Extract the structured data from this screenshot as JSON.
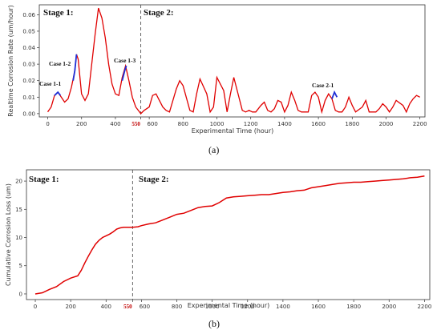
{
  "chart_data": [
    {
      "type": "line",
      "panel_label": "(a)",
      "xlabel": "Experimental Time (hour)",
      "ylabel": "Realtime Corrosion Rate (um/hour)",
      "xlim": [
        -50,
        2230
      ],
      "ylim": [
        -0.002,
        0.066
      ],
      "xticks": [
        0,
        200,
        400,
        550,
        600,
        800,
        1000,
        1200,
        1400,
        1600,
        1800,
        2000,
        2200
      ],
      "xtick_labels": [
        "0",
        "200",
        "400",
        "550",
        "600",
        "800",
        "1000",
        "1200",
        "1400",
        "1600",
        "1800",
        "2000",
        "2200"
      ],
      "yticks": [
        0.0,
        0.01,
        0.02,
        0.03,
        0.04,
        0.05,
        0.06
      ],
      "ytick_labels": [
        "0.00",
        "0.01",
        "0.02",
        "0.03",
        "0.04",
        "0.05",
        "0.06"
      ],
      "stage_divider_x": 550,
      "stage_labels": [
        "Stage 1:",
        "Stage 2:"
      ],
      "series": [
        {
          "color": "#e00000",
          "x": [
            0,
            20,
            40,
            60,
            80,
            100,
            120,
            140,
            160,
            170,
            180,
            200,
            220,
            240,
            260,
            280,
            300,
            320,
            340,
            360,
            380,
            400,
            420,
            440,
            460,
            480,
            500,
            520,
            550,
            570,
            600,
            620,
            640,
            660,
            680,
            700,
            720,
            760,
            780,
            800,
            840,
            860,
            880,
            900,
            940,
            960,
            980,
            1000,
            1040,
            1060,
            1080,
            1100,
            1150,
            1170,
            1190,
            1210,
            1230,
            1260,
            1280,
            1300,
            1320,
            1340,
            1360,
            1380,
            1400,
            1420,
            1440,
            1460,
            1480,
            1500,
            1540,
            1560,
            1580,
            1600,
            1620,
            1640,
            1660,
            1680,
            1700,
            1720,
            1740,
            1760,
            1780,
            1800,
            1820,
            1860,
            1880,
            1900,
            1940,
            1960,
            1980,
            2000,
            2020,
            2040,
            2060,
            2100,
            2120,
            2140,
            2160,
            2180,
            2200
          ],
          "y": [
            0.001,
            0.004,
            0.011,
            0.013,
            0.01,
            0.007,
            0.009,
            0.016,
            0.026,
            0.036,
            0.033,
            0.012,
            0.008,
            0.012,
            0.03,
            0.048,
            0.064,
            0.058,
            0.046,
            0.03,
            0.018,
            0.012,
            0.011,
            0.022,
            0.029,
            0.02,
            0.01,
            0.004,
            0.0,
            0.002,
            0.004,
            0.011,
            0.012,
            0.008,
            0.004,
            0.002,
            0.001,
            0.015,
            0.02,
            0.017,
            0.002,
            0.001,
            0.012,
            0.021,
            0.012,
            0.001,
            0.004,
            0.022,
            0.014,
            0.001,
            0.012,
            0.022,
            0.002,
            0.001,
            0.002,
            0.001,
            0.001,
            0.005,
            0.007,
            0.002,
            0.001,
            0.003,
            0.008,
            0.007,
            0.001,
            0.005,
            0.013,
            0.008,
            0.002,
            0.001,
            0.001,
            0.011,
            0.013,
            0.01,
            0.001,
            0.008,
            0.012,
            0.009,
            0.002,
            0.001,
            0.001,
            0.004,
            0.01,
            0.005,
            0.001,
            0.004,
            0.008,
            0.001,
            0.001,
            0.003,
            0.006,
            0.004,
            0.001,
            0.004,
            0.008,
            0.005,
            0.001,
            0.006,
            0.009,
            0.011,
            0.01
          ]
        }
      ],
      "highlights": [
        {
          "label": "Case 1-1",
          "color": "#1f2fd6",
          "x": [
            40,
            60,
            75
          ],
          "y": [
            0.011,
            0.013,
            0.011
          ]
        },
        {
          "label": "Case 1-2",
          "color": "#1f2fd6",
          "x": [
            150,
            160,
            170
          ],
          "y": [
            0.02,
            0.026,
            0.036
          ]
        },
        {
          "label": "Case 1-3",
          "color": "#1f2fd6",
          "x": [
            440,
            455,
            465
          ],
          "y": [
            0.02,
            0.026,
            0.029
          ]
        },
        {
          "label": "Case 2-1",
          "color": "#1f2fd6",
          "x": [
            1680,
            1695,
            1710
          ],
          "y": [
            0.009,
            0.013,
            0.01
          ]
        }
      ]
    },
    {
      "type": "line",
      "panel_label": "(b)",
      "xlabel": "Experimental Time (hour)",
      "ylabel": "Cumulative Corrosion Loss (um)",
      "xlim": [
        -50,
        2230
      ],
      "ylim": [
        -1,
        22
      ],
      "xticks": [
        0,
        200,
        400,
        550,
        600,
        800,
        1000,
        1200,
        1400,
        1600,
        1800,
        2000,
        2200
      ],
      "xtick_labels": [
        "0",
        "200",
        "400",
        "550",
        "600",
        "800",
        "1000",
        "1200",
        "1400",
        "1600",
        "1800",
        "2000",
        "2200"
      ],
      "yticks": [
        0,
        5,
        10,
        15,
        20
      ],
      "ytick_labels": [
        "0",
        "5",
        "10",
        "15",
        "20"
      ],
      "stage_divider_x": 550,
      "stage_labels": [
        "Stage 1:",
        "Stage 2:"
      ],
      "series": [
        {
          "color": "#e00000",
          "x": [
            0,
            40,
            80,
            120,
            160,
            200,
            240,
            260,
            280,
            300,
            320,
            340,
            360,
            380,
            400,
            420,
            440,
            460,
            480,
            500,
            520,
            550,
            580,
            600,
            640,
            680,
            720,
            760,
            800,
            840,
            880,
            920,
            960,
            1000,
            1040,
            1080,
            1120,
            1160,
            1200,
            1240,
            1280,
            1320,
            1360,
            1400,
            1440,
            1480,
            1520,
            1560,
            1600,
            1640,
            1680,
            1720,
            1760,
            1800,
            1840,
            1880,
            1920,
            1960,
            2000,
            2040,
            2080,
            2120,
            2160,
            2200
          ],
          "y": [
            0,
            0.2,
            0.8,
            1.3,
            2.2,
            2.8,
            3.2,
            4.2,
            5.5,
            6.7,
            7.8,
            8.8,
            9.5,
            10.0,
            10.3,
            10.6,
            11.0,
            11.5,
            11.7,
            11.8,
            11.8,
            11.8,
            11.9,
            12.1,
            12.4,
            12.6,
            13.1,
            13.6,
            14.1,
            14.3,
            14.8,
            15.3,
            15.5,
            15.6,
            16.2,
            17.0,
            17.2,
            17.3,
            17.4,
            17.5,
            17.6,
            17.6,
            17.8,
            18.0,
            18.1,
            18.3,
            18.4,
            18.8,
            19.0,
            19.2,
            19.4,
            19.6,
            19.7,
            19.8,
            19.8,
            19.9,
            20.0,
            20.1,
            20.2,
            20.3,
            20.4,
            20.6,
            20.7,
            20.9
          ]
        }
      ]
    }
  ],
  "case_labels": {
    "c11": "Case 1-1",
    "c12": "Case 1-2",
    "c13": "Case 1-3",
    "c21": "Case 2-1"
  },
  "stage_a": {
    "s1": "Stage 1:",
    "s2": "Stage 2:"
  },
  "stage_b": {
    "s1": "Stage 1:",
    "s2": "Stage 2:"
  },
  "panel_labels": {
    "a": "(a)",
    "b": "(b)"
  },
  "axis_labels_a": {
    "x": "Experimental Time (hour)",
    "y": "Realtime Corrosion Rate (um/hour)"
  },
  "axis_labels_b": {
    "x": "Experimental Time (hour)",
    "y": "Cumulative Corrosion Loss (um)"
  }
}
